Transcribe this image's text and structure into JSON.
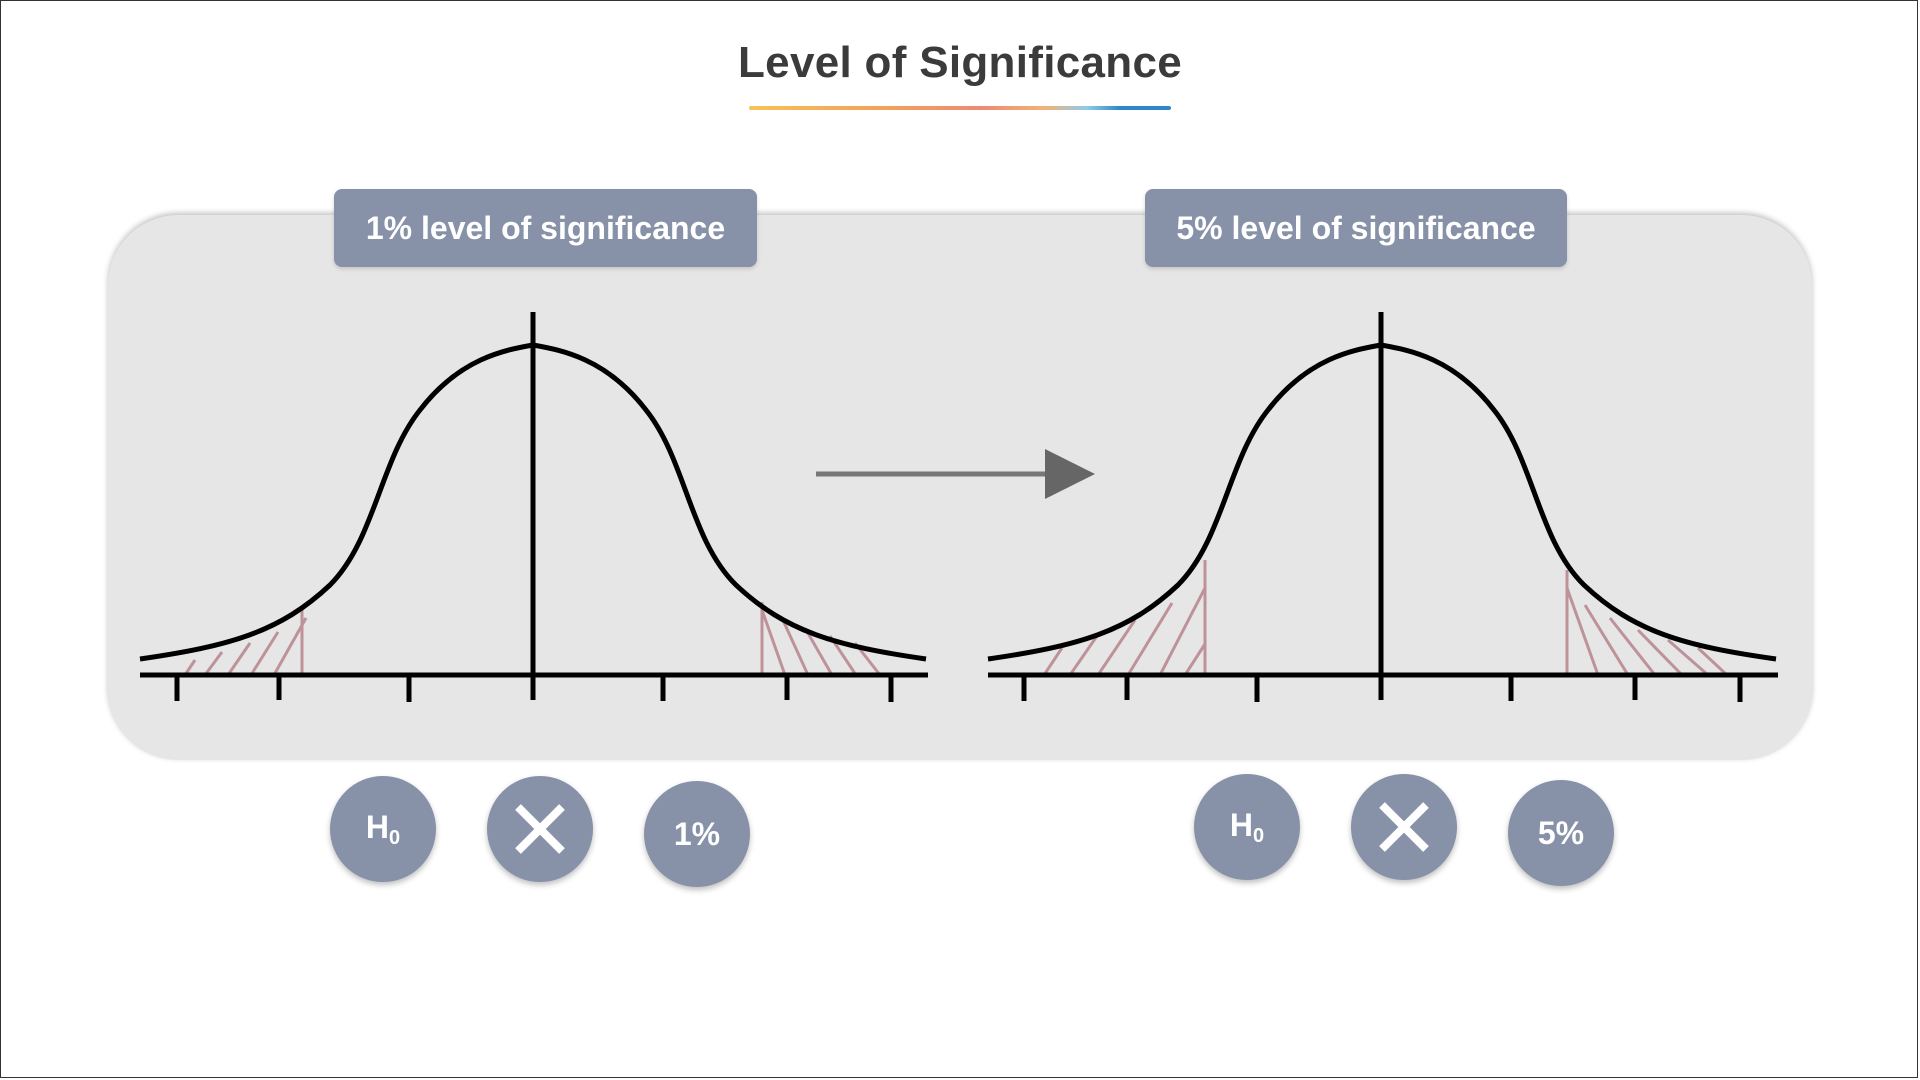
{
  "title": "Level of Significance",
  "left": {
    "label": "1% level of significance",
    "hypothesis": "H",
    "hypothesis_sub": "0",
    "reject_icon": "x-icon",
    "percent": "1%"
  },
  "right": {
    "label": "5% level of significance",
    "hypothesis": "H",
    "hypothesis_sub": "0",
    "reject_icon": "x-icon",
    "percent": "5%"
  },
  "colors": {
    "label_bg": "#8791a8",
    "panel_bg": "#e6e6e6",
    "hatch": "#b98a90",
    "curve": "#000000"
  }
}
